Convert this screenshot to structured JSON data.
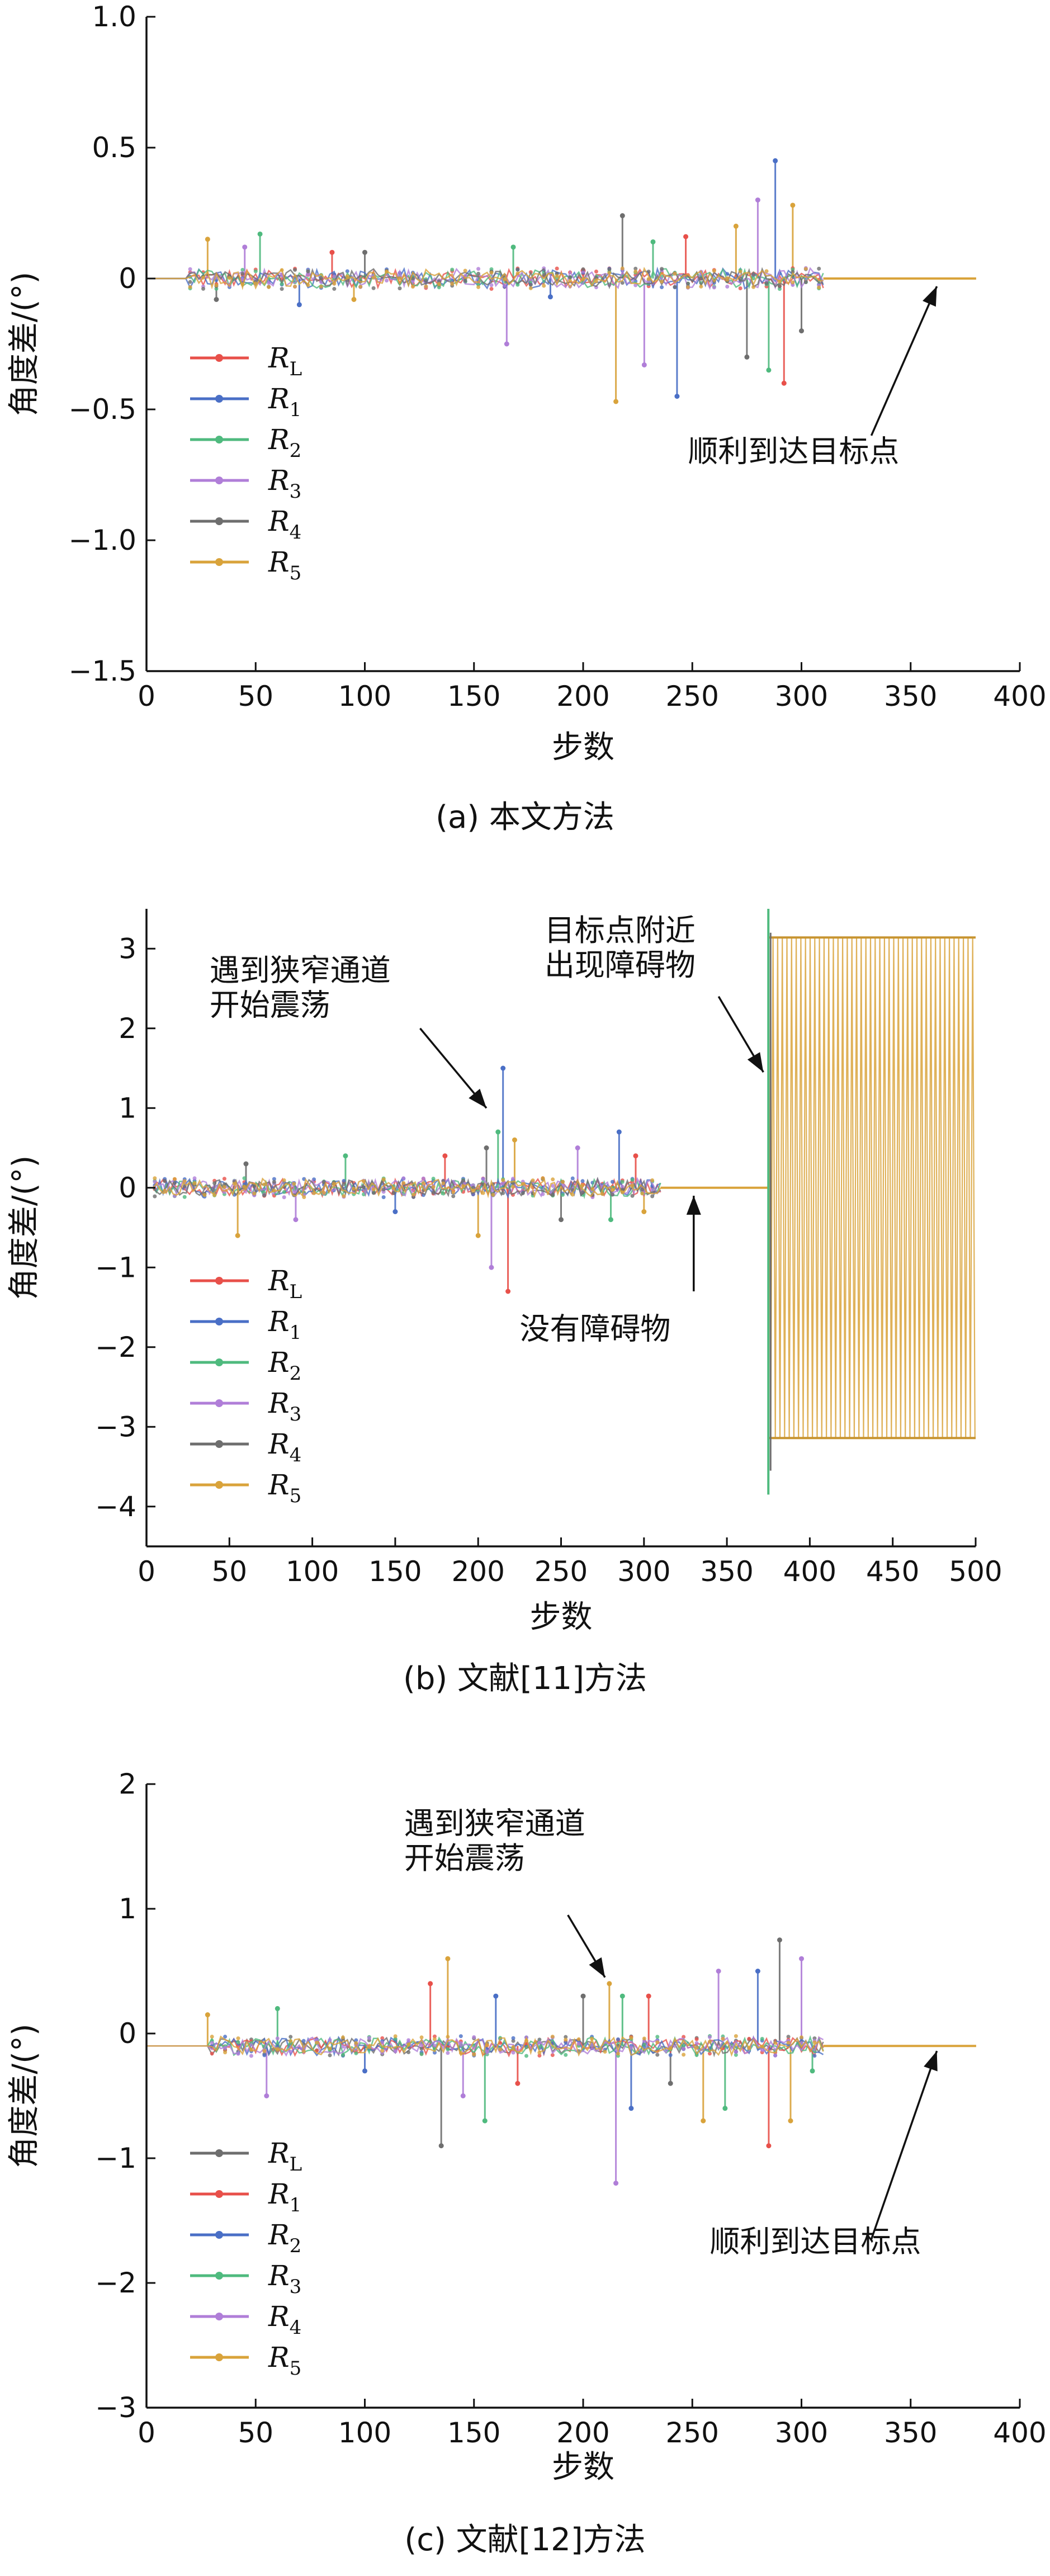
{
  "chart_data": [
    {
      "type": "line",
      "caption": "(a) 本文方法",
      "xlabel": "步数",
      "ylabel": "角度差/(°)",
      "xlim": [
        0,
        400
      ],
      "ylim": [
        -1.5,
        1.0
      ],
      "xticks": [
        0,
        50,
        100,
        150,
        200,
        250,
        300,
        350,
        400
      ],
      "xtick_labels": [
        "0",
        "50",
        "100",
        "150",
        "200",
        "250",
        "300",
        "350",
        "400"
      ],
      "yticks": [
        1.0,
        0.5,
        0,
        -0.5,
        -1.0,
        -1.5
      ],
      "ytick_labels": [
        "1.0",
        "0.5",
        "0",
        "−0.5",
        "−1.0",
        "−1.5"
      ],
      "grid": false,
      "legend_position": "lower-left",
      "series": [
        {
          "name": "R",
          "sub": "L",
          "color": "#e8504a"
        },
        {
          "name": "R",
          "sub": "1",
          "color": "#4a6fc6"
        },
        {
          "name": "R",
          "sub": "2",
          "color": "#4fba7e"
        },
        {
          "name": "R",
          "sub": "3",
          "color": "#b07ed8"
        },
        {
          "name": "R",
          "sub": "4",
          "color": "#6e6e6e"
        },
        {
          "name": "R",
          "sub": "5",
          "color": "#d9a33b"
        }
      ],
      "events": [
        [
          28,
          0.15
        ],
        [
          32,
          -0.08
        ],
        [
          45,
          0.12
        ],
        [
          52,
          0.17
        ],
        [
          70,
          -0.1
        ],
        [
          85,
          0.1
        ],
        [
          95,
          -0.08
        ],
        [
          100,
          0.1
        ],
        [
          165,
          -0.25
        ],
        [
          168,
          0.12
        ],
        [
          185,
          -0.07
        ],
        [
          200,
          0.03
        ],
        [
          215,
          -0.47
        ],
        [
          218,
          0.24
        ],
        [
          228,
          -0.33
        ],
        [
          232,
          0.14
        ],
        [
          243,
          -0.45
        ],
        [
          247,
          0.16
        ],
        [
          270,
          0.2
        ],
        [
          275,
          -0.3
        ],
        [
          280,
          0.3
        ],
        [
          285,
          -0.35
        ],
        [
          288,
          0.45
        ],
        [
          292,
          -0.4
        ],
        [
          296,
          0.28
        ],
        [
          300,
          -0.2
        ]
      ],
      "noise": {
        "start": 20,
        "end": 310,
        "amp": 0.04
      },
      "converged": {
        "from": 310,
        "to": 380,
        "value": 0
      },
      "annotations": [
        {
          "text": "顺利到达目标点",
          "text_at": [
            248,
            -0.7
          ],
          "arrow_from": [
            332,
            -0.6
          ],
          "arrow_to": [
            362,
            -0.03
          ]
        }
      ]
    },
    {
      "type": "line",
      "caption": "(b) 文献[11]方法",
      "xlabel": "步数",
      "ylabel": "角度差/(°)",
      "xlim": [
        0,
        500
      ],
      "ylim": [
        -4.5,
        3.5
      ],
      "xticks": [
        0,
        50,
        100,
        150,
        200,
        250,
        300,
        350,
        400,
        450,
        500
      ],
      "xtick_labels": [
        "0",
        "50",
        "100",
        "150",
        "200",
        "250",
        "300",
        "350",
        "400",
        "450",
        "500"
      ],
      "yticks": [
        3,
        2,
        1,
        0,
        -1,
        -2,
        -3,
        -4
      ],
      "ytick_labels": [
        "3",
        "2",
        "1",
        "0",
        "−1",
        "−2",
        "−3",
        "−4"
      ],
      "grid": false,
      "legend_position": "lower-left",
      "series": [
        {
          "name": "R",
          "sub": "L",
          "color": "#e8504a"
        },
        {
          "name": "R",
          "sub": "1",
          "color": "#4a6fc6"
        },
        {
          "name": "R",
          "sub": "2",
          "color": "#4fba7e"
        },
        {
          "name": "R",
          "sub": "3",
          "color": "#b07ed8"
        },
        {
          "name": "R",
          "sub": "4",
          "color": "#6e6e6e"
        },
        {
          "name": "R",
          "sub": "5",
          "color": "#d9a33b"
        }
      ],
      "events": [
        [
          55,
          -0.6
        ],
        [
          60,
          0.3
        ],
        [
          90,
          -0.4
        ],
        [
          120,
          0.4
        ],
        [
          150,
          -0.3
        ],
        [
          180,
          0.4
        ],
        [
          200,
          -0.6
        ],
        [
          205,
          0.5
        ],
        [
          208,
          -1.0
        ],
        [
          212,
          0.7
        ],
        [
          215,
          1.5
        ],
        [
          218,
          -1.3
        ],
        [
          222,
          0.6
        ],
        [
          250,
          -0.4
        ],
        [
          260,
          0.5
        ],
        [
          280,
          -0.4
        ],
        [
          285,
          0.7
        ],
        [
          295,
          0.4
        ],
        [
          300,
          -0.3
        ]
      ],
      "noise": {
        "start": 5,
        "end": 310,
        "amp": 0.12
      },
      "converged": {
        "from": 310,
        "to": 375,
        "value": 0
      },
      "oscillation": {
        "from": 375,
        "to": 500,
        "amplitude": 3.14,
        "period": 2.8,
        "spike_high": 3.5,
        "spike_low": -3.85
      },
      "annotations": [
        {
          "text": "遇到狭窄通道",
          "text2": "开始震荡",
          "text_at": [
            38,
            2.6
          ],
          "arrow_from": [
            165,
            2.0
          ],
          "arrow_to": [
            205,
            1.0
          ]
        },
        {
          "text": "目标点附近",
          "text2": "出现障碍物",
          "text_at": [
            240,
            3.1
          ],
          "arrow_from": [
            345,
            2.4
          ],
          "arrow_to": [
            372,
            1.45
          ]
        },
        {
          "text": "没有障碍物",
          "text_at": [
            225,
            -1.9
          ],
          "arrow_from": [
            330,
            -1.3
          ],
          "arrow_to": [
            330,
            -0.1
          ]
        }
      ]
    },
    {
      "type": "line",
      "caption": "(c) 文献[12]方法",
      "xlabel": "步数",
      "ylabel": "角度差/(°)",
      "xlim": [
        0,
        400
      ],
      "ylim": [
        -3,
        2
      ],
      "xticks": [
        0,
        50,
        100,
        150,
        200,
        250,
        300,
        350,
        400
      ],
      "xtick_labels": [
        "0",
        "50",
        "100",
        "150",
        "200",
        "250",
        "300",
        "350",
        "400"
      ],
      "yticks": [
        2,
        1,
        0,
        -1,
        -2,
        -3
      ],
      "ytick_labels": [
        "2",
        "1",
        "0",
        "−1",
        "−2",
        "−3"
      ],
      "grid": false,
      "legend_position": "lower-left",
      "series": [
        {
          "name": "R",
          "sub": "L",
          "color": "#6e6e6e"
        },
        {
          "name": "R",
          "sub": "1",
          "color": "#e8504a"
        },
        {
          "name": "R",
          "sub": "2",
          "color": "#4a6fc6"
        },
        {
          "name": "R",
          "sub": "3",
          "color": "#4fba7e"
        },
        {
          "name": "R",
          "sub": "4",
          "color": "#b07ed8"
        },
        {
          "name": "R",
          "sub": "5",
          "color": "#d9a33b"
        }
      ],
      "events": [
        [
          28,
          0.15
        ],
        [
          55,
          -0.5
        ],
        [
          60,
          0.2
        ],
        [
          100,
          -0.3
        ],
        [
          130,
          0.4
        ],
        [
          135,
          -0.9
        ],
        [
          138,
          0.6
        ],
        [
          145,
          -0.5
        ],
        [
          155,
          -0.7
        ],
        [
          160,
          0.3
        ],
        [
          170,
          -0.4
        ],
        [
          200,
          0.3
        ],
        [
          212,
          0.4
        ],
        [
          215,
          -1.2
        ],
        [
          218,
          0.3
        ],
        [
          222,
          -0.6
        ],
        [
          230,
          0.3
        ],
        [
          240,
          -0.4
        ],
        [
          255,
          -0.7
        ],
        [
          262,
          0.5
        ],
        [
          265,
          -0.6
        ],
        [
          280,
          0.5
        ],
        [
          285,
          -0.9
        ],
        [
          290,
          0.75
        ],
        [
          295,
          -0.7
        ],
        [
          300,
          0.6
        ],
        [
          305,
          -0.3
        ]
      ],
      "noise": {
        "start": 30,
        "end": 310,
        "amp": 0.08
      },
      "converged": {
        "from": 310,
        "to": 380,
        "value": -0.1
      },
      "start_value": -0.1,
      "annotations": [
        {
          "text": "遇到狭窄通道",
          "text2": "开始震荡",
          "text_at": [
            118,
            1.6
          ],
          "arrow_from": [
            193,
            0.95
          ],
          "arrow_to": [
            210,
            0.45
          ]
        },
        {
          "text": "顺利到达目标点",
          "text_at": [
            258,
            -1.75
          ],
          "arrow_from": [
            332,
            -1.65
          ],
          "arrow_to": [
            362,
            -0.14
          ]
        }
      ]
    }
  ]
}
